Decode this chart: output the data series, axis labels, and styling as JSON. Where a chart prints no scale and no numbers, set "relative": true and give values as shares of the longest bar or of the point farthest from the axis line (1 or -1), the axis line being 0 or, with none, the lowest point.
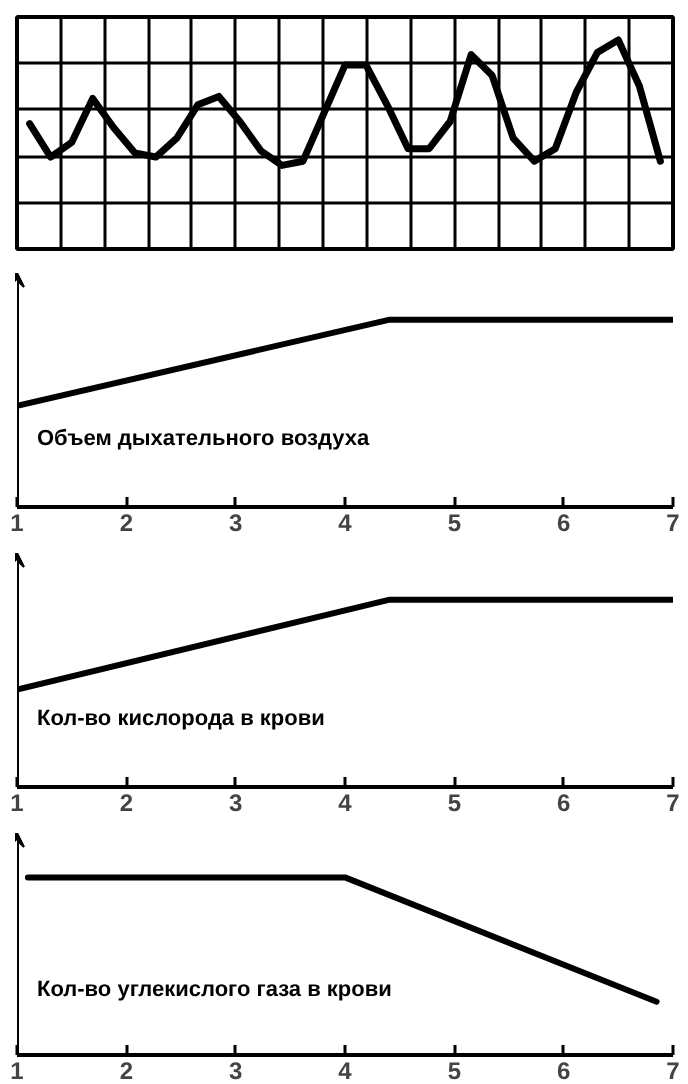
{
  "chart_data": [
    {
      "type": "line",
      "relative": true,
      "grid": true,
      "tick_labels": false,
      "color": "#000000",
      "categories": [
        null,
        null,
        null,
        null,
        null,
        null,
        null,
        null,
        null,
        null,
        null,
        null,
        null,
        null,
        null,
        null,
        null,
        null,
        null,
        null,
        null,
        null,
        null,
        null,
        null,
        null,
        null,
        null,
        null,
        null,
        null
      ],
      "values": [
        0.6,
        0.44,
        0.51,
        0.72,
        0.58,
        0.46,
        0.44,
        0.53,
        0.69,
        0.73,
        0.61,
        0.47,
        0.4,
        0.42,
        0.65,
        0.88,
        0.88,
        0.69,
        0.48,
        0.48,
        0.61,
        0.93,
        0.83,
        0.53,
        0.42,
        0.48,
        0.75,
        0.94,
        1,
        0.78,
        0.42
      ]
    },
    {
      "type": "line",
      "relative": true,
      "tick_labels": "x",
      "color": "#000000",
      "xlim": [
        1,
        7
      ],
      "xticks": [
        1,
        2,
        3,
        4,
        5,
        6,
        7
      ],
      "x": [
        1,
        4.4,
        7
      ],
      "values": [
        0.54,
        1,
        1
      ],
      "annotations": [
        "Объем дыхательного воздуха"
      ]
    },
    {
      "type": "line",
      "relative": true,
      "tick_labels": "x",
      "color": "#000000",
      "xlim": [
        1,
        7
      ],
      "xticks": [
        1,
        2,
        3,
        4,
        5,
        6,
        7
      ],
      "x": [
        1,
        4.4,
        7
      ],
      "values": [
        0.52,
        1,
        1
      ],
      "annotations": [
        "Кол-во кислорода в крови"
      ]
    },
    {
      "type": "line",
      "relative": true,
      "tick_labels": "x",
      "color": "#000000",
      "xlim": [
        1,
        7
      ],
      "xticks": [
        1,
        2,
        3,
        4,
        5,
        6,
        7
      ],
      "x": [
        1.1,
        4,
        6.85
      ],
      "values": [
        1,
        1,
        0.3
      ],
      "annotations": [
        "Кол-во углекислого газа в крови"
      ]
    }
  ]
}
